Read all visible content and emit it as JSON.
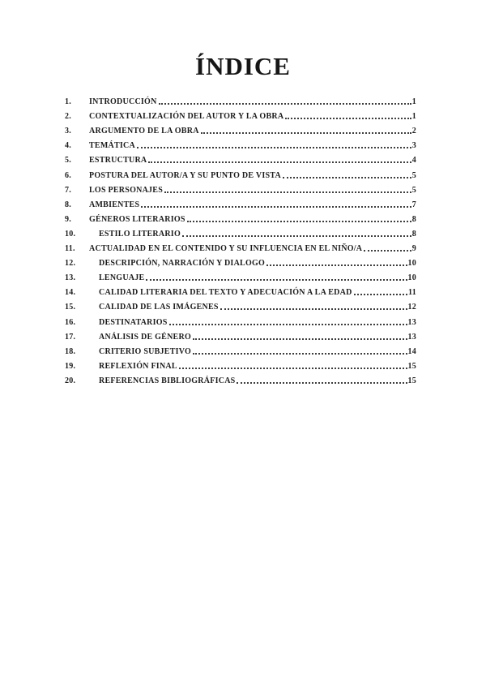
{
  "document": {
    "title": "ÍNDICE"
  },
  "toc": {
    "entries": [
      {
        "num": "1.",
        "label": "INTRODUCCIÓN",
        "page": "1",
        "indent": false
      },
      {
        "num": "2.",
        "label": "CONTEXTUALIZACIÓN DEL AUTOR Y LA OBRA",
        "page": "1",
        "indent": false
      },
      {
        "num": "3.",
        "label": "ARGUMENTO DE LA OBRA",
        "page": "2",
        "indent": false
      },
      {
        "num": "4.",
        "label": "TEMÁTICA",
        "page": "3",
        "indent": false
      },
      {
        "num": "5.",
        "label": "ESTRUCTURA",
        "page": "4",
        "indent": false
      },
      {
        "num": "6.",
        "label": "POSTURA DEL AUTOR/A Y SU PUNTO DE VISTA",
        "page": "5",
        "indent": false
      },
      {
        "num": "7.",
        "label": "LOS PERSONAJES",
        "page": "5",
        "indent": false
      },
      {
        "num": "8.",
        "label": "AMBIENTES",
        "page": "7",
        "indent": false
      },
      {
        "num": "9.",
        "label": "GÉNEROS LITERARIOS",
        "page": "8",
        "indent": false
      },
      {
        "num": "10.",
        "label": "ESTILO LITERARIO",
        "page": "8",
        "indent": true
      },
      {
        "num": "11.",
        "label": "ACTUALIDAD EN EL CONTENIDO Y SU INFLUENCIA EN EL NIÑO/A",
        "page": "9",
        "indent": false
      },
      {
        "num": "12.",
        "label": "DESCRIPCIÓN, NARRACIÓN Y DIALOGO",
        "page": "10",
        "indent": true
      },
      {
        "num": "13.",
        "label": "LENGUAJE",
        "page": "10",
        "indent": true
      },
      {
        "num": "14.",
        "label": "CALIDAD LITERARIA DEL TEXTO Y ADECUACIÓN A LA EDAD",
        "page": "11",
        "indent": true
      },
      {
        "num": "15.",
        "label": "CALIDAD DE LAS IMÁGENES",
        "page": "12",
        "indent": true
      },
      {
        "num": "16.",
        "label": "DESTINATARIOS",
        "page": "13",
        "indent": true
      },
      {
        "num": "17.",
        "label": "ANÁLISIS DE GÉNERO",
        "page": "13",
        "indent": true
      },
      {
        "num": "18.",
        "label": "CRITERIO SUBJETIVO",
        "page": "14",
        "indent": true
      },
      {
        "num": "19.",
        "label": "REFLEXIÓN FINAL",
        "page": "15",
        "indent": true
      },
      {
        "num": "20.",
        "label": "REFERENCIAS BIBLIOGRÁFICAS",
        "page": "15",
        "indent": true
      }
    ]
  }
}
